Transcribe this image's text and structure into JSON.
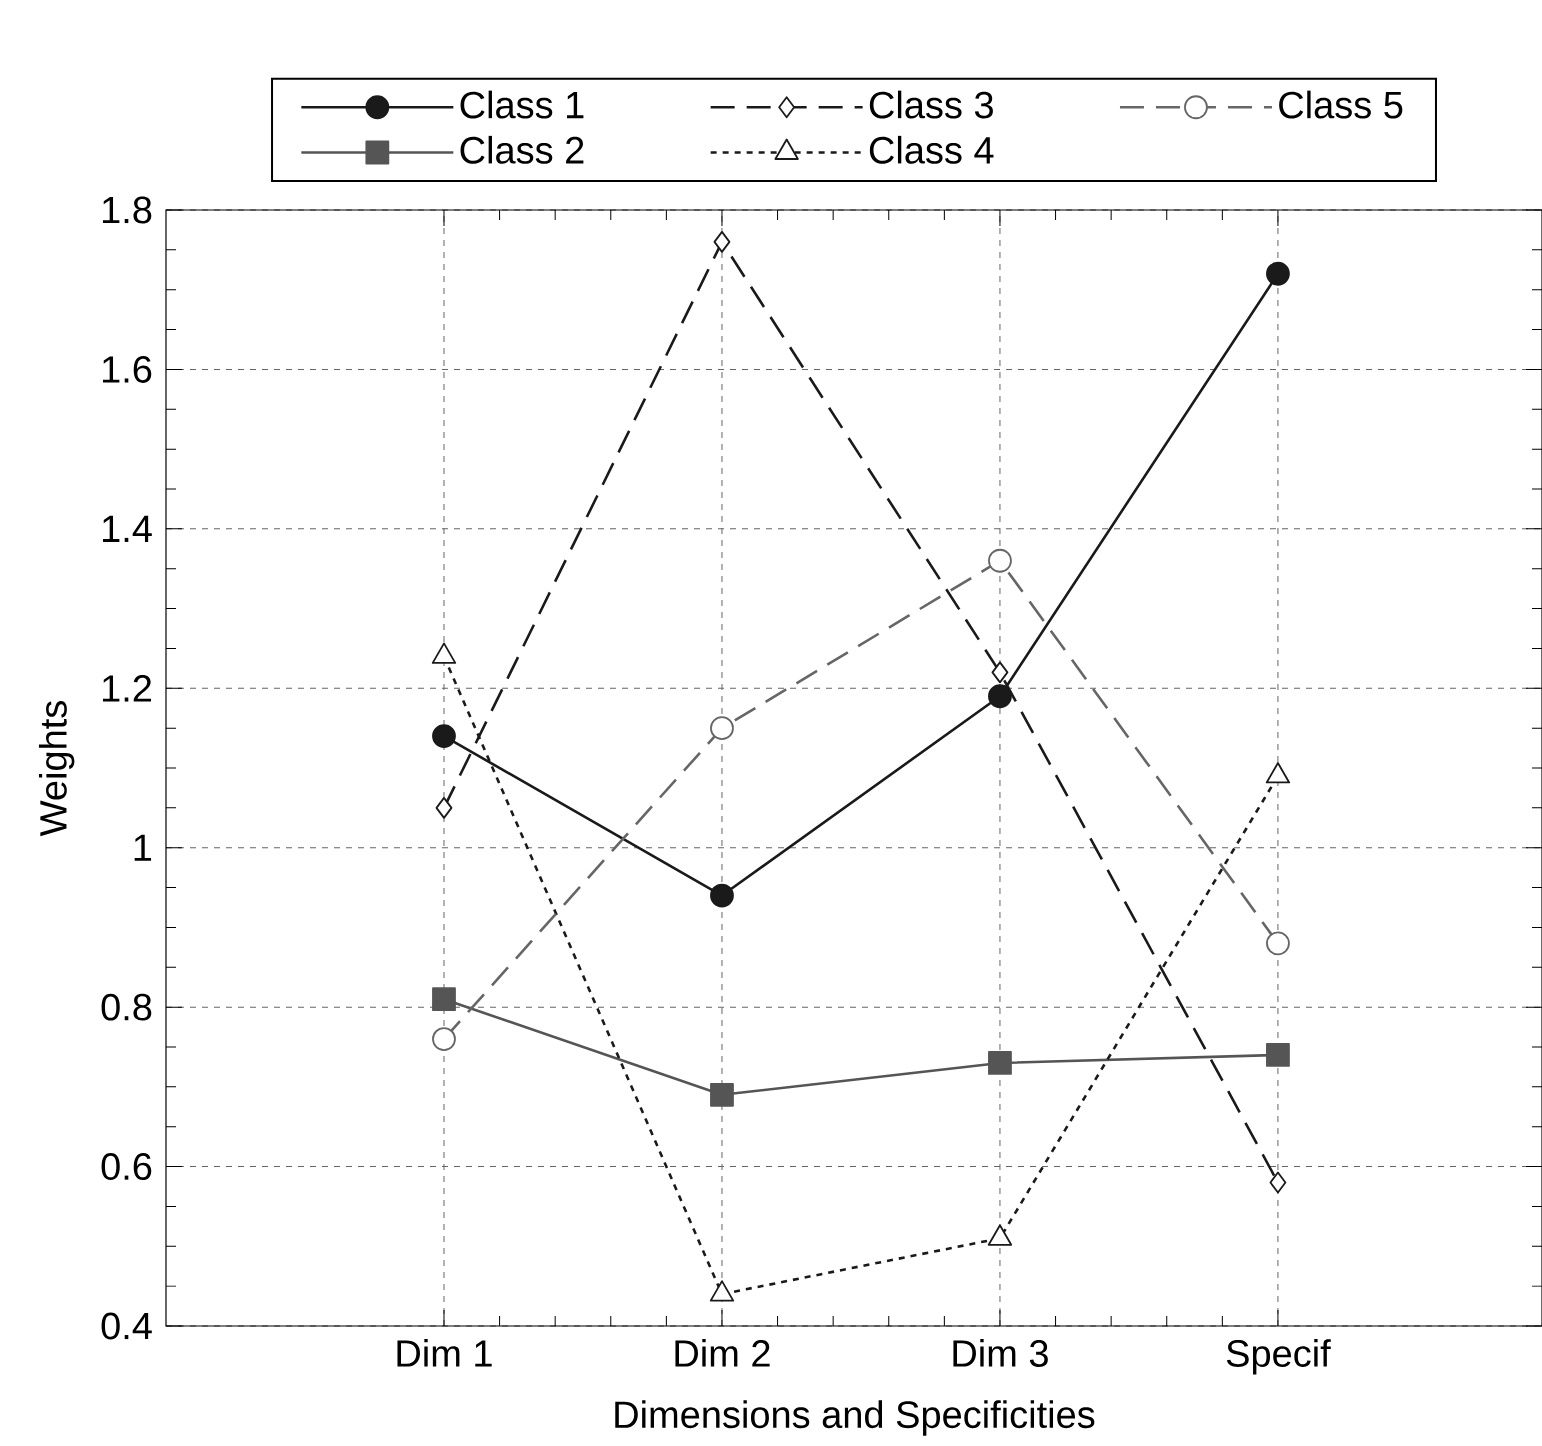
{
  "chart_data": {
    "type": "line",
    "xlabel": "Dimensions and Specificities",
    "ylabel": "Weights",
    "categories": [
      "Dim 1",
      "Dim 2",
      "Dim 3",
      "Specif"
    ],
    "series": [
      {
        "name": "Class 1",
        "color": "#1a1a1a",
        "marker": "circle",
        "line_style": "solid",
        "values": [
          1.14,
          0.94,
          1.19,
          1.72
        ]
      },
      {
        "name": "Class 2",
        "color": "#555555",
        "marker": "square",
        "line_style": "solid",
        "values": [
          0.81,
          0.69,
          0.73,
          0.74
        ]
      },
      {
        "name": "Class 3",
        "color": "#1a1a1a",
        "marker": "diamond",
        "line_style": "dashed",
        "values": [
          1.05,
          1.76,
          1.22,
          0.58
        ]
      },
      {
        "name": "Class 4",
        "color": "#1a1a1a",
        "marker": "triangle",
        "line_style": "dotted",
        "values": [
          1.24,
          0.44,
          0.51,
          1.09
        ]
      },
      {
        "name": "Class 5",
        "color": "#666666",
        "marker": "circle",
        "line_style": "dashed",
        "values": [
          0.76,
          1.15,
          1.36,
          0.88
        ]
      }
    ],
    "ylim": [
      0.4,
      1.8
    ],
    "yticks": [
      0.4,
      0.6,
      0.8,
      1,
      1.2,
      1.4,
      1.6,
      1.8
    ],
    "grid": true,
    "legend": "top"
  }
}
